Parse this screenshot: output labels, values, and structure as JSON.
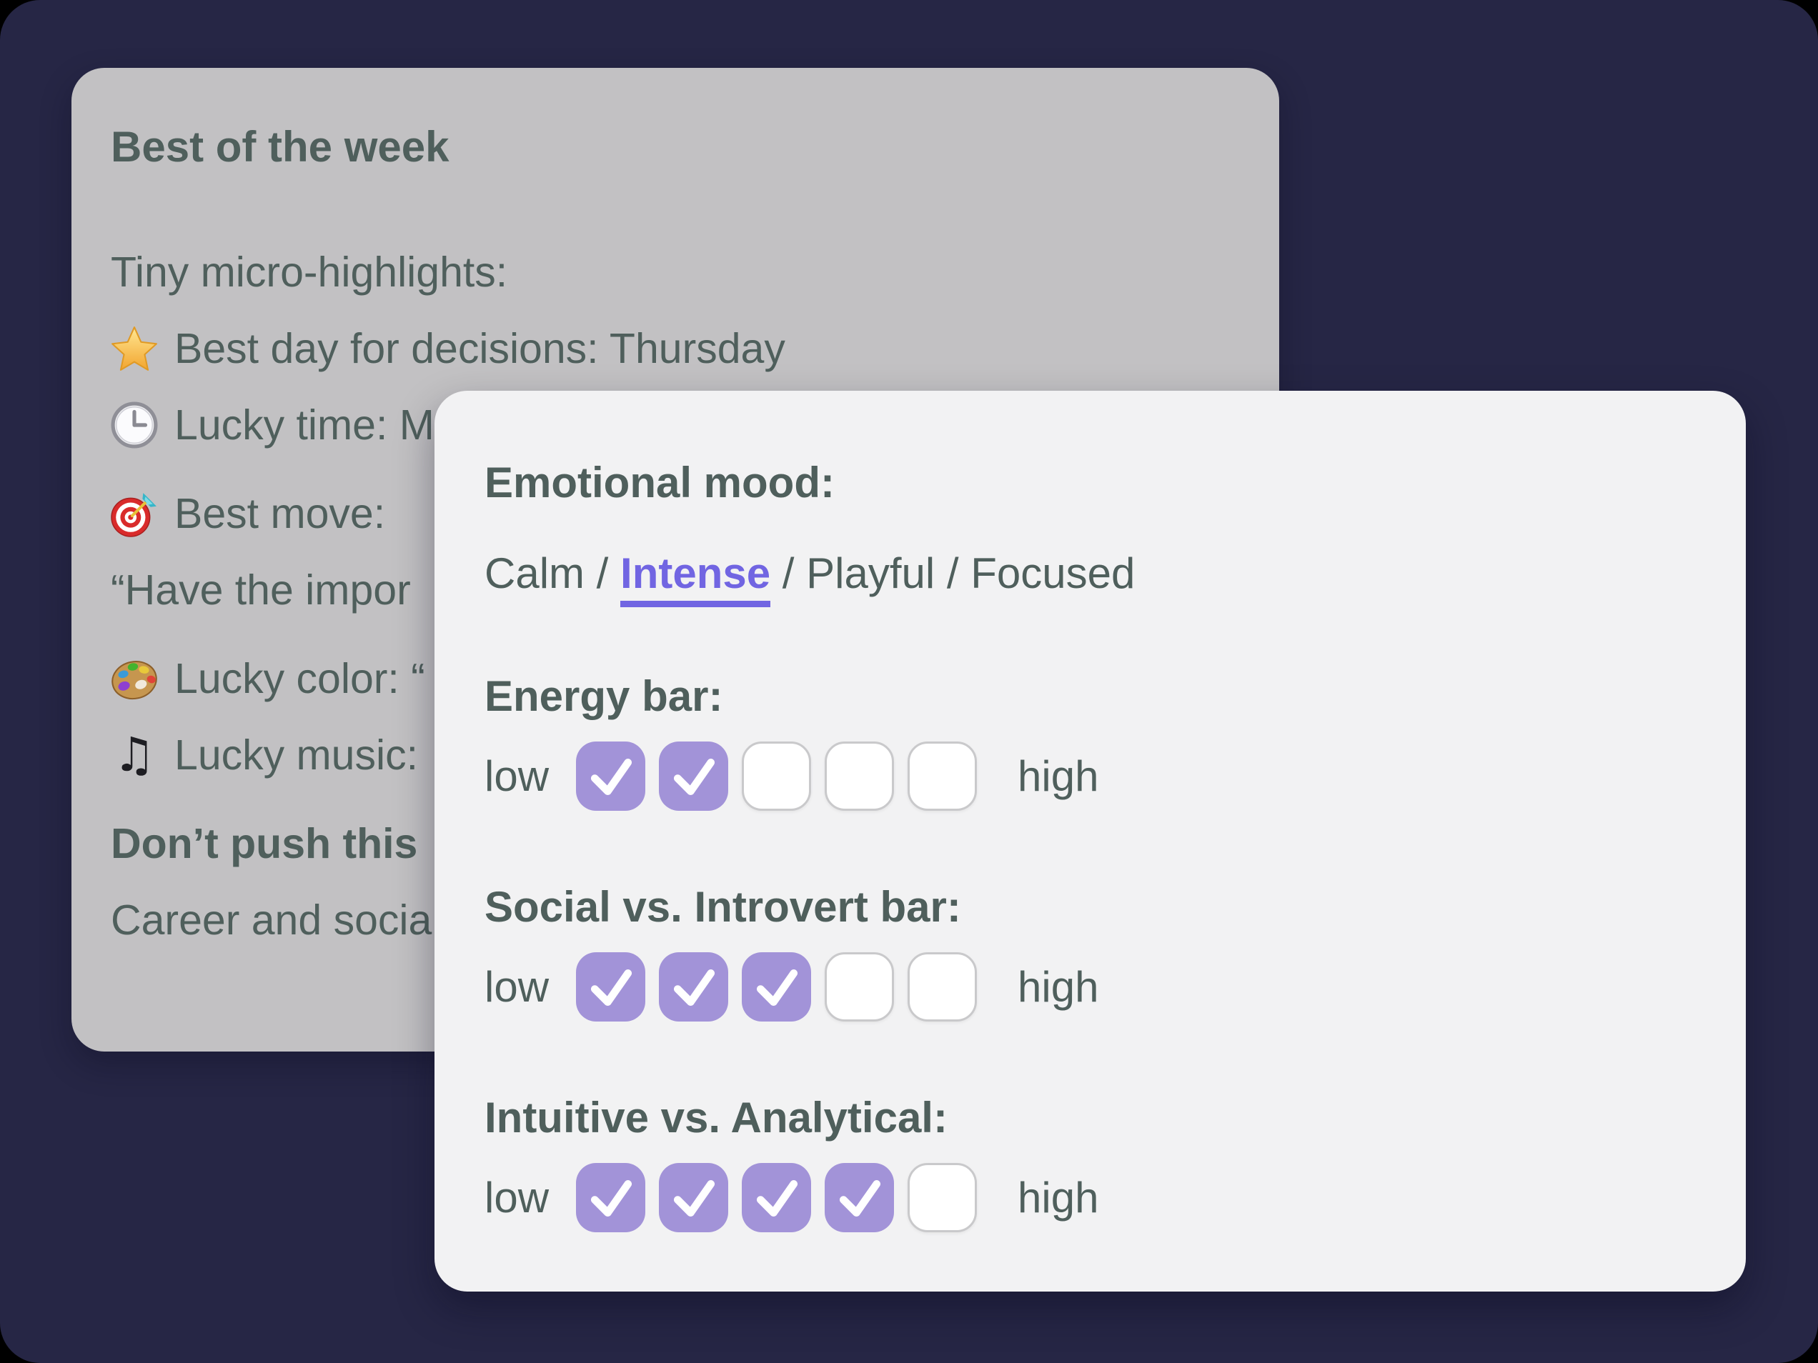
{
  "colors": {
    "canvas_bg": "#262645",
    "back_card_bg": "#c2c1c3",
    "front_card_bg": "#f2f2f3",
    "text": "#4f5f5c",
    "accent_purple": "#a293d8",
    "link_purple": "#7165e2",
    "unchecked_border": "#c9c9cb"
  },
  "back_card": {
    "title": "Best of the week",
    "lines": [
      {
        "icon": "",
        "text": "Tiny micro-highlights:",
        "bold": false,
        "gap_before": false
      },
      {
        "icon": "star",
        "text": "Best day for decisions: Thursday",
        "bold": false,
        "gap_before": false
      },
      {
        "icon": "clock",
        "text": "Lucky time: M",
        "bold": false,
        "gap_before": false
      },
      {
        "icon": "target",
        "text": "Best move:",
        "bold": false,
        "gap_before": true
      },
      {
        "icon": "",
        "text": "“Have the impor",
        "bold": false,
        "gap_before": false
      },
      {
        "icon": "palette",
        "text": "Lucky color: “",
        "bold": false,
        "gap_before": true
      },
      {
        "icon": "music-note",
        "text": "Lucky music:",
        "bold": false,
        "gap_before": false
      },
      {
        "icon": "",
        "text": "Don’t push this",
        "bold": true,
        "gap_before": true
      },
      {
        "icon": "",
        "text": "Career and socia",
        "bold": false,
        "gap_before": false
      }
    ]
  },
  "front_card": {
    "mood": {
      "heading": "Emotional mood:",
      "options": [
        "Calm",
        "Intense",
        "Playful",
        "Focused"
      ],
      "selected": "Intense",
      "separator": " / "
    },
    "bars": [
      {
        "heading": "Energy bar:",
        "low_label": "low",
        "high_label": "high",
        "total": 5,
        "checked": 2
      },
      {
        "heading": "Social vs. Introvert bar:",
        "low_label": "low",
        "high_label": "high",
        "total": 5,
        "checked": 3
      },
      {
        "heading": "Intuitive vs. Analytical:",
        "low_label": "low",
        "high_label": "high",
        "total": 5,
        "checked": 4
      }
    ]
  }
}
